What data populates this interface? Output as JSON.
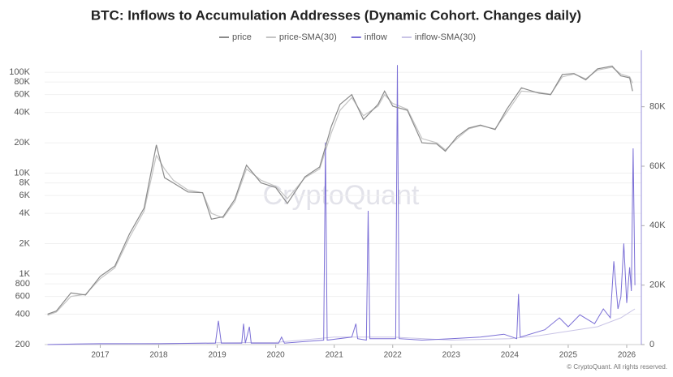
{
  "chart_data": {
    "type": "line",
    "title": "BTC: Inflows to Accumulation Addresses (Dynamic Cohort. Changes daily)",
    "watermark": "CryptoQuant",
    "footer": "© CryptoQuant. All rights reserved.",
    "xlim": [
      2016.05,
      2026.25
    ],
    "xticks": [
      2017,
      2018,
      2019,
      2020,
      2021,
      2022,
      2023,
      2024,
      2025,
      2026
    ],
    "ylim": [
      200,
      165000
    ],
    "log_y": true,
    "yticks": [
      200,
      400,
      600,
      800,
      {
        "value": 1000,
        "label": "1K"
      },
      {
        "value": 2000,
        "label": "2K"
      },
      {
        "value": 4000,
        "label": "4K"
      },
      {
        "value": 6000,
        "label": "6K"
      },
      {
        "value": 8000,
        "label": "8K"
      },
      {
        "value": 10000,
        "label": "10K"
      },
      {
        "value": 20000,
        "label": "20K"
      },
      {
        "value": 40000,
        "label": "40K"
      },
      {
        "value": 60000,
        "label": "60K"
      },
      {
        "value": 80000,
        "label": "80K"
      },
      {
        "value": 100000,
        "label": "100K"
      }
    ],
    "y2lim": [
      0,
      99000
    ],
    "y2ticks": [
      0,
      {
        "value": 20000,
        "label": "20K"
      },
      {
        "value": 40000,
        "label": "40K"
      },
      {
        "value": 60000,
        "label": "60K"
      },
      {
        "value": 80000,
        "label": "80K"
      }
    ],
    "grid": true,
    "legend": "top",
    "series": [
      {
        "name": "price",
        "color": "#8a8a8a",
        "x": [
          2016.1,
          2016.25,
          2016.5,
          2016.75,
          2017.0,
          2017.25,
          2017.5,
          2017.75,
          2017.96,
          2018.1,
          2018.25,
          2018.5,
          2018.75,
          2018.9,
          2019.1,
          2019.3,
          2019.5,
          2019.75,
          2020.0,
          2020.2,
          2020.5,
          2020.75,
          2020.95,
          2021.1,
          2021.3,
          2021.5,
          2021.75,
          2021.86,
          2022.0,
          2022.25,
          2022.5,
          2022.75,
          2022.9,
          2023.1,
          2023.3,
          2023.5,
          2023.75,
          2023.95,
          2024.2,
          2024.5,
          2024.7,
          2024.9,
          2025.1,
          2025.3,
          2025.5,
          2025.75,
          2025.9,
          2026.05,
          2026.1
        ],
        "values": [
          400,
          430,
          650,
          620,
          950,
          1200,
          2500,
          4500,
          19000,
          9000,
          8000,
          6500,
          6400,
          3500,
          3700,
          5500,
          12000,
          8000,
          7200,
          5000,
          9200,
          11500,
          29000,
          48000,
          60000,
          34000,
          48000,
          65000,
          46000,
          42000,
          20000,
          19500,
          16500,
          23000,
          28000,
          30000,
          27000,
          43000,
          70000,
          62000,
          60000,
          95000,
          97000,
          84000,
          108000,
          115000,
          92000,
          88000,
          65000
        ]
      },
      {
        "name": "price-SMA(30)",
        "color": "#c4c4c4",
        "x": [
          2016.1,
          2016.25,
          2016.5,
          2016.75,
          2017.0,
          2017.25,
          2017.5,
          2017.75,
          2017.96,
          2018.1,
          2018.25,
          2018.5,
          2018.75,
          2018.9,
          2019.1,
          2019.3,
          2019.5,
          2019.75,
          2020.0,
          2020.2,
          2020.5,
          2020.75,
          2020.95,
          2021.1,
          2021.3,
          2021.5,
          2021.75,
          2021.86,
          2022.0,
          2022.25,
          2022.5,
          2022.75,
          2022.9,
          2023.1,
          2023.3,
          2023.5,
          2023.75,
          2023.95,
          2024.2,
          2024.5,
          2024.7,
          2024.9,
          2025.1,
          2025.3,
          2025.5,
          2025.75,
          2025.9,
          2026.05,
          2026.1
        ],
        "values": [
          390,
          420,
          600,
          630,
          900,
          1150,
          2300,
          4200,
          15000,
          11000,
          8500,
          6800,
          6400,
          4000,
          3600,
          5200,
          11000,
          8500,
          7400,
          5600,
          9000,
          11000,
          25000,
          42000,
          56000,
          37000,
          46000,
          60000,
          49000,
          43000,
          22000,
          20000,
          17000,
          22000,
          27500,
          29500,
          27500,
          40000,
          65000,
          63000,
          60500,
          90000,
          96000,
          86000,
          105000,
          112000,
          96000,
          90000,
          78000
        ]
      },
      {
        "name": "inflow",
        "color": "#7b6fd6",
        "axis": "y2",
        "x": [
          2016.1,
          2016.6,
          2017.0,
          2018.0,
          2018.97,
          2019.02,
          2019.07,
          2019.42,
          2019.45,
          2019.48,
          2019.55,
          2019.58,
          2019.61,
          2020.05,
          2020.1,
          2020.15,
          2020.82,
          2020.85,
          2020.88,
          2021.3,
          2021.37,
          2021.4,
          2021.55,
          2021.58,
          2021.61,
          2022.05,
          2022.08,
          2022.11,
          2022.5,
          2023.0,
          2023.5,
          2023.9,
          2024.12,
          2024.15,
          2024.18,
          2024.6,
          2024.85,
          2025.0,
          2025.2,
          2025.45,
          2025.6,
          2025.72,
          2025.78,
          2025.85,
          2025.9,
          2025.95,
          2026.0,
          2026.05,
          2026.08,
          2026.11,
          2026.14
        ],
        "values": [
          0,
          200,
          300,
          300,
          500,
          8000,
          500,
          500,
          7000,
          500,
          6000,
          500,
          500,
          500,
          2500,
          500,
          1500,
          68000,
          1500,
          2500,
          7000,
          2000,
          1500,
          45000,
          2000,
          2000,
          94000,
          2000,
          1500,
          2000,
          2500,
          3500,
          2000,
          17000,
          2500,
          5000,
          9000,
          6000,
          10000,
          7000,
          12000,
          9000,
          28000,
          12000,
          16000,
          34000,
          14000,
          26000,
          18000,
          66000,
          20000
        ]
      },
      {
        "name": "inflow-SMA(30)",
        "color": "#c9c4e6",
        "axis": "y2",
        "x": [
          2016.1,
          2017.0,
          2018.0,
          2019.0,
          2020.0,
          2021.0,
          2022.0,
          2023.0,
          2024.0,
          2024.5,
          2025.0,
          2025.5,
          2025.9,
          2026.14
        ],
        "values": [
          0,
          200,
          300,
          600,
          700,
          2500,
          2500,
          1500,
          2000,
          3000,
          4500,
          6000,
          9000,
          12000
        ]
      }
    ]
  }
}
